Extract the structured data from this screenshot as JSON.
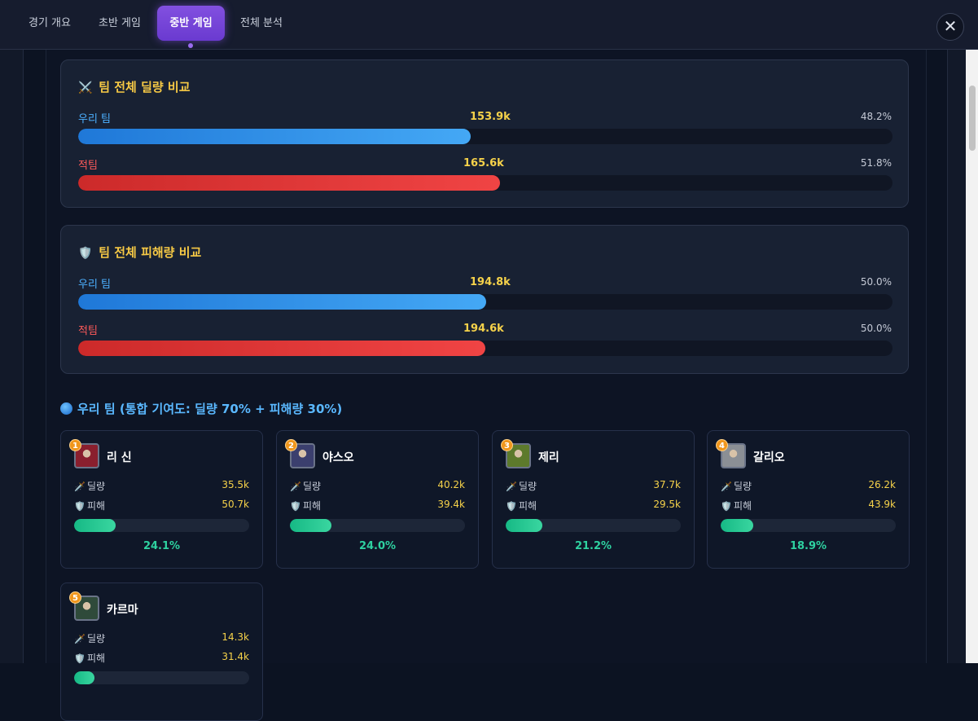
{
  "tabs": [
    {
      "label": "경기 개요"
    },
    {
      "label": "초반 게임"
    },
    {
      "label": "중반 게임"
    },
    {
      "label": "전체 분석"
    }
  ],
  "active_tab": "중반 게임",
  "close_label": "✕",
  "damage_card": {
    "icon": "⚔️",
    "title": "팀 전체 딜량 비교",
    "ours": {
      "label": "우리 팀",
      "value": "153.9k",
      "pct": "48.2%",
      "fraction": 0.482
    },
    "enemy": {
      "label": "적팀",
      "value": "165.6k",
      "pct": "51.8%",
      "fraction": 0.518
    }
  },
  "taken_card": {
    "icon": "🛡️",
    "title": "팀 전체 피해량 비교",
    "ours": {
      "label": "우리 팀",
      "value": "194.8k",
      "pct": "50.0%",
      "fraction": 0.501
    },
    "enemy": {
      "label": "적팀",
      "value": "194.6k",
      "pct": "50.0%",
      "fraction": 0.5
    }
  },
  "team_heading": "우리 팀 (통합 기여도: 딜량 70% + 피해량 30%)",
  "stat_labels": {
    "damage": "딜량",
    "taken": "피해",
    "damage_icon": "🗡️",
    "taken_icon": "🛡️"
  },
  "players": [
    {
      "rank": "1",
      "name": "리 신",
      "damage": "35.5k",
      "taken": "50.7k",
      "share": "24.1%",
      "bar": 0.241,
      "avatar_color": "#8a1f2e"
    },
    {
      "rank": "2",
      "name": "야스오",
      "damage": "40.2k",
      "taken": "39.4k",
      "share": "24.0%",
      "bar": 0.24,
      "avatar_color": "#3b3f6e"
    },
    {
      "rank": "3",
      "name": "제리",
      "damage": "37.7k",
      "taken": "29.5k",
      "share": "21.2%",
      "bar": 0.212,
      "avatar_color": "#5d7a2c"
    },
    {
      "rank": "4",
      "name": "갈리오",
      "damage": "26.2k",
      "taken": "43.9k",
      "share": "18.9%",
      "bar": 0.189,
      "avatar_color": "#8b8f95"
    },
    {
      "rank": "5",
      "name": "카르마",
      "damage": "14.3k",
      "taken": "31.4k",
      "share": "",
      "bar": 0.12,
      "avatar_color": "#2f4a3a"
    }
  ]
}
